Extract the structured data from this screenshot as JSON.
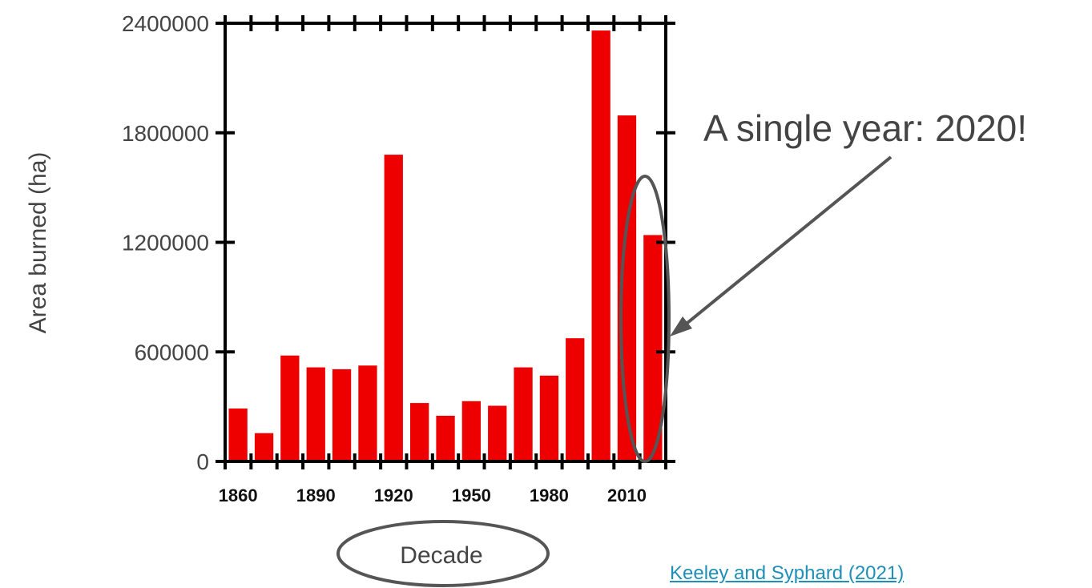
{
  "chart_data": {
    "type": "bar",
    "categories": [
      "1860",
      "1870",
      "1880",
      "1890",
      "1900",
      "1910",
      "1920",
      "1930",
      "1940",
      "1950",
      "1960",
      "1970",
      "1980",
      "1990",
      "2000",
      "2010",
      "2020"
    ],
    "values": [
      290000,
      155000,
      580000,
      515000,
      505000,
      525000,
      1680000,
      320000,
      250000,
      330000,
      305000,
      515000,
      470000,
      675000,
      2360000,
      1895000,
      1240000
    ],
    "x_tick_labels": [
      "1860",
      "1890",
      "1920",
      "1950",
      "1980",
      "2010"
    ],
    "y_tick_labels": [
      "0",
      "600000",
      "1200000",
      "1800000",
      "2400000"
    ],
    "title": "",
    "xlabel": "Decade",
    "ylabel": "Area burned (ha)",
    "ylim": [
      0,
      2400000
    ],
    "bar_color": "#ee0000",
    "grid": false,
    "annotation": "A single year: 2020!"
  },
  "citation": "Keeley and Syphard (2021)",
  "colors": {
    "annotation": "#444444",
    "circle": "#555555",
    "link": "#1e8fb8"
  }
}
